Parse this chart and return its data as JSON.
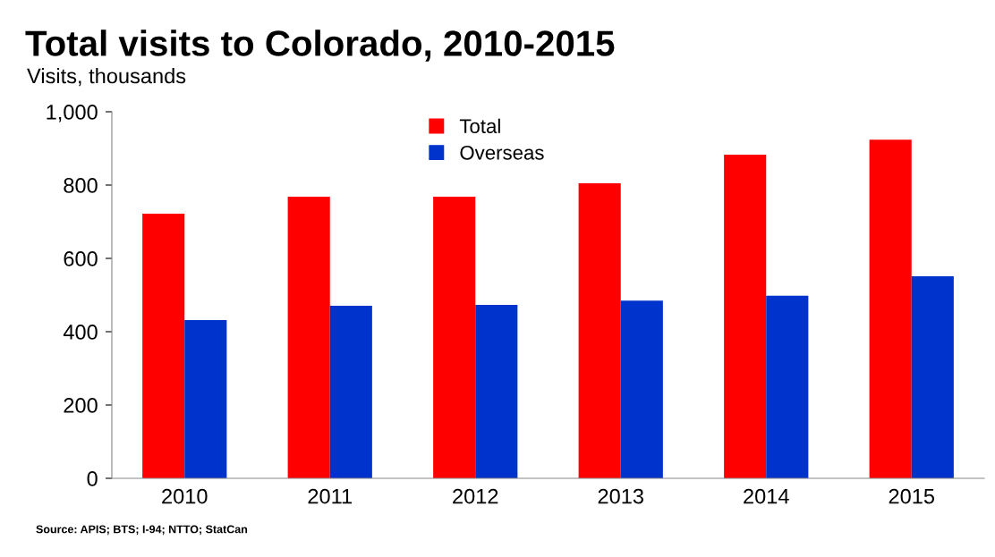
{
  "chart_data": {
    "type": "bar",
    "title": "Total visits to Colorado, 2010-2015",
    "subtitle": "Visits, thousands",
    "categories": [
      "2010",
      "2011",
      "2012",
      "2013",
      "2014",
      "2015"
    ],
    "series": [
      {
        "name": "Total",
        "color": "#ff0000",
        "values": [
          722,
          768,
          768,
          805,
          883,
          924
        ]
      },
      {
        "name": "Overseas",
        "color": "#0033cc",
        "values": [
          432,
          471,
          473,
          485,
          498,
          551
        ]
      }
    ],
    "ylim": [
      0,
      1000
    ],
    "yticks": [
      0,
      200,
      400,
      600,
      800,
      {
        "value": 1000,
        "label": "1,000"
      }
    ],
    "grid": false,
    "legend": "top",
    "annotations": [
      "Source: APIS; BTS; I-94; NTTO; StatCan"
    ]
  }
}
